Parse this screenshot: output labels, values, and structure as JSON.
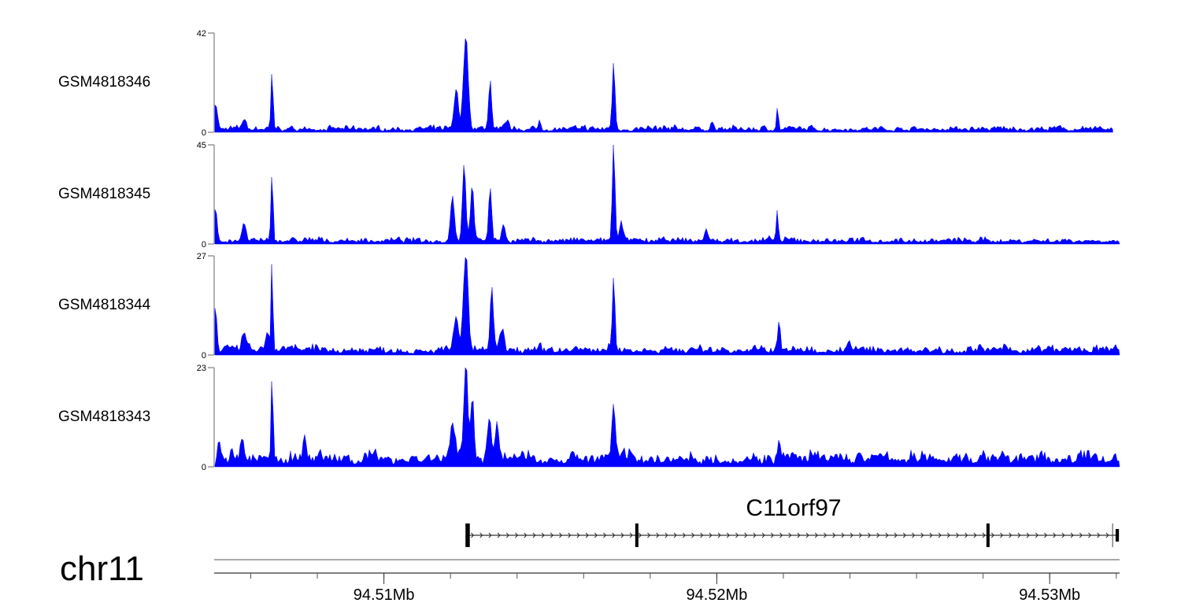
{
  "chart_data": {
    "type": "area",
    "title": "",
    "chromosome": "chr11",
    "xlim_mb": [
      94.5049,
      94.5321
    ],
    "x_ticks_mb": [
      94.51,
      94.52,
      94.53
    ],
    "x_tick_labels": [
      "94.51Mb",
      "94.52Mb",
      "94.53Mb"
    ],
    "minor_tick_step_mb": 0.002,
    "fill_color": "#0000ff",
    "tracks": [
      {
        "name": "GSM4818346",
        "ylim": [
          0,
          42
        ],
        "y_tick_labels": [
          "0",
          "42"
        ],
        "background_level": 1.6,
        "end_mb": 94.5319,
        "peaks": [
          [
            94.50494,
            12,
            0.12
          ],
          [
            94.50579,
            4,
            0.12
          ],
          [
            94.50664,
            25,
            0.06
          ],
          [
            94.51217,
            17,
            0.12
          ],
          [
            94.51246,
            40,
            0.14
          ],
          [
            94.51319,
            21,
            0.09
          ],
          [
            94.51371,
            4,
            0.08
          ],
          [
            94.51468,
            4,
            0.06
          ],
          [
            94.5169,
            29,
            0.08
          ],
          [
            94.51986,
            3,
            0.08
          ],
          [
            94.52182,
            9,
            0.06
          ]
        ]
      },
      {
        "name": "GSM4818345",
        "ylim": [
          0,
          45
        ],
        "y_tick_labels": [
          "0",
          "45"
        ],
        "background_level": 1.8,
        "end_mb": 94.5321,
        "peaks": [
          [
            94.50494,
            16,
            0.1
          ],
          [
            94.50579,
            7,
            0.12
          ],
          [
            94.50664,
            31,
            0.06
          ],
          [
            94.51206,
            20,
            0.12
          ],
          [
            94.51241,
            36,
            0.1
          ],
          [
            94.51265,
            26,
            0.1
          ],
          [
            94.51319,
            25,
            0.09
          ],
          [
            94.51359,
            8,
            0.1
          ],
          [
            94.5169,
            45,
            0.08
          ],
          [
            94.51714,
            8,
            0.1
          ],
          [
            94.51967,
            5,
            0.1
          ],
          [
            94.52182,
            14,
            0.06
          ]
        ]
      },
      {
        "name": "GSM4818344",
        "ylim": [
          0,
          27
        ],
        "y_tick_labels": [
          "0",
          "27"
        ],
        "background_level": 1.6,
        "end_mb": 94.5321,
        "peaks": [
          [
            94.50494,
            13,
            0.08
          ],
          [
            94.50579,
            5,
            0.12
          ],
          [
            94.50664,
            27,
            0.05
          ],
          [
            94.5065,
            4,
            0.1
          ],
          [
            94.51217,
            9,
            0.14
          ],
          [
            94.51246,
            26,
            0.14
          ],
          [
            94.51324,
            16,
            0.1
          ],
          [
            94.51355,
            6,
            0.1
          ],
          [
            94.5169,
            20,
            0.08
          ],
          [
            94.52187,
            8,
            0.07
          ],
          [
            94.52395,
            2,
            0.1
          ]
        ]
      },
      {
        "name": "GSM4818343",
        "ylim": [
          0,
          23
        ],
        "y_tick_labels": [
          "0",
          "23"
        ],
        "background_level": 2.2,
        "end_mb": 94.5321,
        "peaks": [
          [
            94.50504,
            4,
            0.1
          ],
          [
            94.50574,
            5,
            0.08
          ],
          [
            94.50664,
            20,
            0.06
          ],
          [
            94.50761,
            5,
            0.1
          ],
          [
            94.51206,
            9,
            0.14
          ],
          [
            94.51246,
            22,
            0.12
          ],
          [
            94.51265,
            14,
            0.1
          ],
          [
            94.51317,
            10,
            0.12
          ],
          [
            94.5134,
            8,
            0.12
          ],
          [
            94.5169,
            13,
            0.1
          ],
          [
            94.52187,
            5,
            0.08
          ]
        ]
      }
    ],
    "gene": {
      "name": "C11orf97",
      "strand": "+",
      "start_mb": 94.51248,
      "end_mb": 94.53208,
      "exons_mb": [
        [
          94.51245,
          94.51258
        ],
        [
          94.51755,
          94.51762
        ],
        [
          94.5281,
          94.52817
        ],
        [
          94.53198,
          94.53208
        ]
      ]
    }
  }
}
